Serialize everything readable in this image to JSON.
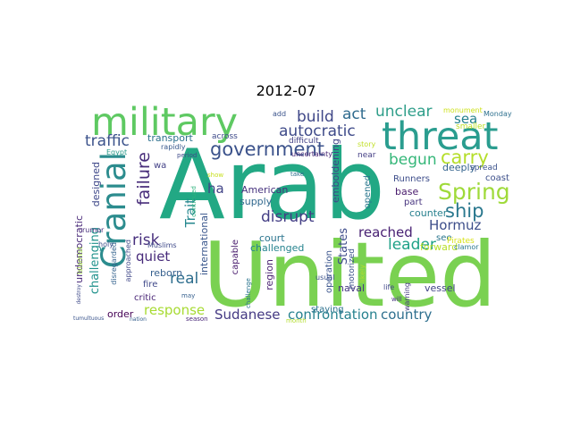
{
  "title": "2012-07",
  "words": [
    {
      "text": "Arab",
      "color": "#22a884"
    },
    {
      "text": "United",
      "color": "#7ad151"
    },
    {
      "text": "military",
      "color": "#5ec962"
    },
    {
      "text": "threat",
      "color": "#2a9d8f"
    },
    {
      "text": "Cranial",
      "color": "#2c8c8e"
    },
    {
      "text": "government",
      "color": "#3b528b"
    },
    {
      "text": "autocratic",
      "color": "#3e4a89"
    },
    {
      "text": "build",
      "color": "#3f4788"
    },
    {
      "text": "act",
      "color": "#2f6b8e"
    },
    {
      "text": "unclear",
      "color": "#2f9e8a"
    },
    {
      "text": "sea",
      "color": "#26828e"
    },
    {
      "text": "carry",
      "color": "#b5de2b"
    },
    {
      "text": "begun",
      "color": "#35b779"
    },
    {
      "text": "Spring",
      "color": "#9fda3a"
    },
    {
      "text": "traffic",
      "color": "#3b528b"
    },
    {
      "text": "failure",
      "color": "#472c7a"
    },
    {
      "text": "transport",
      "color": "#2d708e"
    },
    {
      "text": "across",
      "color": "#3e4a89"
    },
    {
      "text": "ha",
      "color": "#404387"
    },
    {
      "text": "Trait",
      "color": "#24878e"
    },
    {
      "text": "disrupt",
      "color": "#433e85"
    },
    {
      "text": "ship",
      "color": "#2a788e"
    },
    {
      "text": "Hormuz",
      "color": "#3d4e8a"
    },
    {
      "text": "reached",
      "color": "#482173"
    },
    {
      "text": "leader",
      "color": "#1fa187"
    },
    {
      "text": "States",
      "color": "#3e4c8a"
    },
    {
      "text": "emboldening",
      "color": "#404588"
    },
    {
      "text": "risk",
      "color": "#472f7d"
    },
    {
      "text": "quiet",
      "color": "#472a7a"
    },
    {
      "text": "real",
      "color": "#2e6e8e"
    },
    {
      "text": "challenging",
      "color": "#20928c"
    },
    {
      "text": "undemocratic",
      "color": "#482878"
    },
    {
      "text": "designed",
      "color": "#3f4889"
    },
    {
      "text": "response",
      "color": "#a8db34"
    },
    {
      "text": "Sudanese",
      "color": "#443983"
    },
    {
      "text": "confrontation",
      "color": "#26818e"
    },
    {
      "text": "country",
      "color": "#2e6f8e"
    },
    {
      "text": "American",
      "color": "#46327e"
    },
    {
      "text": "supply",
      "color": "#31688e"
    },
    {
      "text": "court",
      "color": "#2b758e"
    },
    {
      "text": "challenged",
      "color": "#25838e"
    },
    {
      "text": "international",
      "color": "#39568c"
    },
    {
      "text": "capable",
      "color": "#481b6d"
    },
    {
      "text": "region",
      "color": "#481f70"
    },
    {
      "text": "operation",
      "color": "#3a548c"
    },
    {
      "text": "reborn",
      "color": "#355f8d"
    },
    {
      "text": "fire",
      "color": "#3f4889"
    },
    {
      "text": "critic",
      "color": "#482475"
    },
    {
      "text": "order",
      "color": "#440154"
    },
    {
      "text": "staying",
      "color": "#2c718e"
    },
    {
      "text": "naval",
      "color": "#453781"
    },
    {
      "text": "motorized",
      "color": "#3b528b"
    },
    {
      "text": "vessel",
      "color": "#414487"
    },
    {
      "text": "forward",
      "color": "#b8de29"
    },
    {
      "text": "counter",
      "color": "#27808e"
    },
    {
      "text": "see",
      "color": "#2a768e"
    },
    {
      "text": "Pirates",
      "color": "#d8e219"
    },
    {
      "text": "base",
      "color": "#481a6c"
    },
    {
      "text": "part",
      "color": "#46337e"
    },
    {
      "text": "Runners",
      "color": "#3d4d8a"
    },
    {
      "text": "opened",
      "color": "#2a778e"
    },
    {
      "text": "deeply",
      "color": "#33638d"
    },
    {
      "text": "coast",
      "color": "#3c4f8a"
    },
    {
      "text": "spread",
      "color": "#3b528b"
    },
    {
      "text": "smaller",
      "color": "#bddf26"
    },
    {
      "text": "monument",
      "color": "#cde11d"
    },
    {
      "text": "Monday",
      "color": "#2d708e"
    },
    {
      "text": "story",
      "color": "#c0df25"
    },
    {
      "text": "difficult",
      "color": "#424186"
    },
    {
      "text": "near",
      "color": "#433d84"
    },
    {
      "text": "add",
      "color": "#3a538b"
    },
    {
      "text": "wa",
      "color": "#424086"
    },
    {
      "text": "rapidly",
      "color": "#38588c"
    },
    {
      "text": "Egypt",
      "color": "#2a9a8a"
    },
    {
      "text": "period",
      "color": "#3e4a89"
    },
    {
      "text": "show",
      "color": "#c8e020"
    },
    {
      "text": "take",
      "color": "#2d708e"
    },
    {
      "text": "uncertainty",
      "color": "#482576"
    },
    {
      "text": "usual",
      "color": "#3b518b"
    },
    {
      "text": "likely",
      "color": "#b0dd2f"
    },
    {
      "text": "life",
      "color": "#3f4788"
    },
    {
      "text": "will",
      "color": "#46337e"
    },
    {
      "text": "warning",
      "color": "#453882"
    },
    {
      "text": "clamor",
      "color": "#2a778e"
    },
    {
      "text": "rumor",
      "color": "#472d7b"
    },
    {
      "text": "holy",
      "color": "#3c4f8a"
    },
    {
      "text": "disregarded",
      "color": "#33628d"
    },
    {
      "text": "Muslims",
      "color": "#3e4989"
    },
    {
      "text": "approached",
      "color": "#3f4788"
    },
    {
      "text": "may",
      "color": "#355f8d"
    },
    {
      "text": "challenge",
      "color": "#2b748e"
    },
    {
      "text": "season",
      "color": "#482677"
    },
    {
      "text": "month",
      "color": "#b2dd2d"
    },
    {
      "text": "Islamist",
      "color": "#9bd93c"
    },
    {
      "text": "destroy",
      "color": "#3e4989"
    },
    {
      "text": "tumultuous",
      "color": "#3a548c"
    },
    {
      "text": "nation",
      "color": "#355f8d"
    },
    {
      "text": "continued",
      "color": "#2db27d"
    }
  ]
}
